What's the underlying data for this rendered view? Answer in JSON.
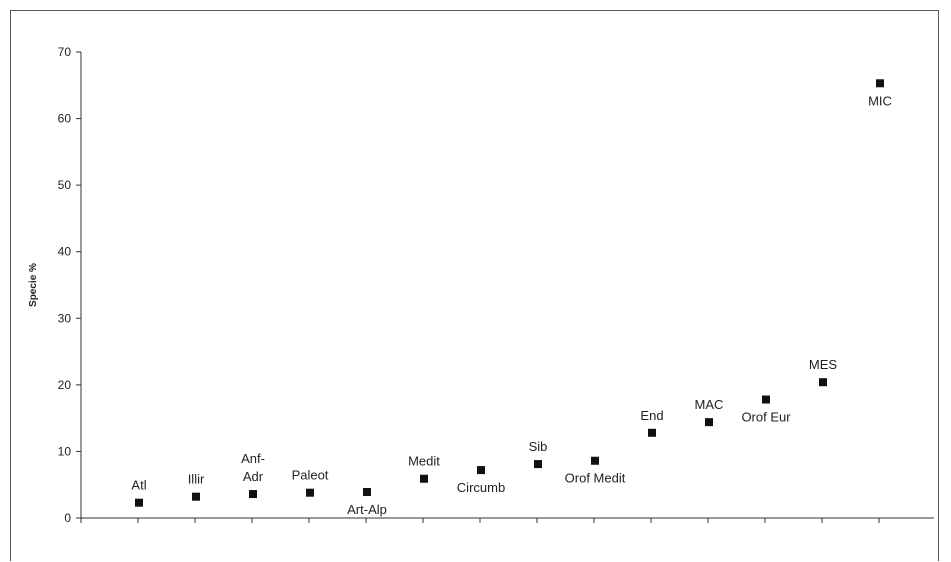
{
  "chart_data": {
    "type": "scatter",
    "title": "",
    "xlabel": "",
    "ylabel": "Specie %",
    "ylim": [
      0,
      70
    ],
    "yticks": [
      0,
      10,
      20,
      30,
      40,
      50,
      60,
      70
    ],
    "grid": false,
    "legend": "none",
    "marker_color": "#111111",
    "categories": [
      "Atl",
      "Illir",
      "Anf-Adr",
      "Paleot",
      "Art-Alp",
      "Medit",
      "Circumb",
      "Sib",
      "Orof Medit",
      "End",
      "MAC",
      "Orof Eur",
      "MES",
      "MIC"
    ],
    "values": [
      2.3,
      3.2,
      3.6,
      3.8,
      3.9,
      5.9,
      7.2,
      8.1,
      8.6,
      12.8,
      14.4,
      17.8,
      20.4,
      65.3
    ],
    "label_positions": [
      "above",
      "above",
      "above",
      "above",
      "below",
      "above",
      "below",
      "above",
      "below",
      "above",
      "above",
      "below",
      "above",
      "below"
    ],
    "point_labels": [
      {
        "lines": [
          "Atl"
        ]
      },
      {
        "lines": [
          "Illir"
        ]
      },
      {
        "lines": [
          "Anf-",
          "Adr"
        ]
      },
      {
        "lines": [
          "Paleot"
        ]
      },
      {
        "lines": [
          "Art-Alp"
        ]
      },
      {
        "lines": [
          "Medit"
        ]
      },
      {
        "lines": [
          "Circumb"
        ]
      },
      {
        "lines": [
          "Sib"
        ]
      },
      {
        "lines": [
          "Orof Medit"
        ]
      },
      {
        "lines": [
          "End"
        ]
      },
      {
        "lines": [
          "MAC"
        ]
      },
      {
        "lines": [
          "Orof Eur"
        ]
      },
      {
        "lines": [
          "MES"
        ]
      },
      {
        "lines": [
          "MIC"
        ]
      }
    ]
  }
}
